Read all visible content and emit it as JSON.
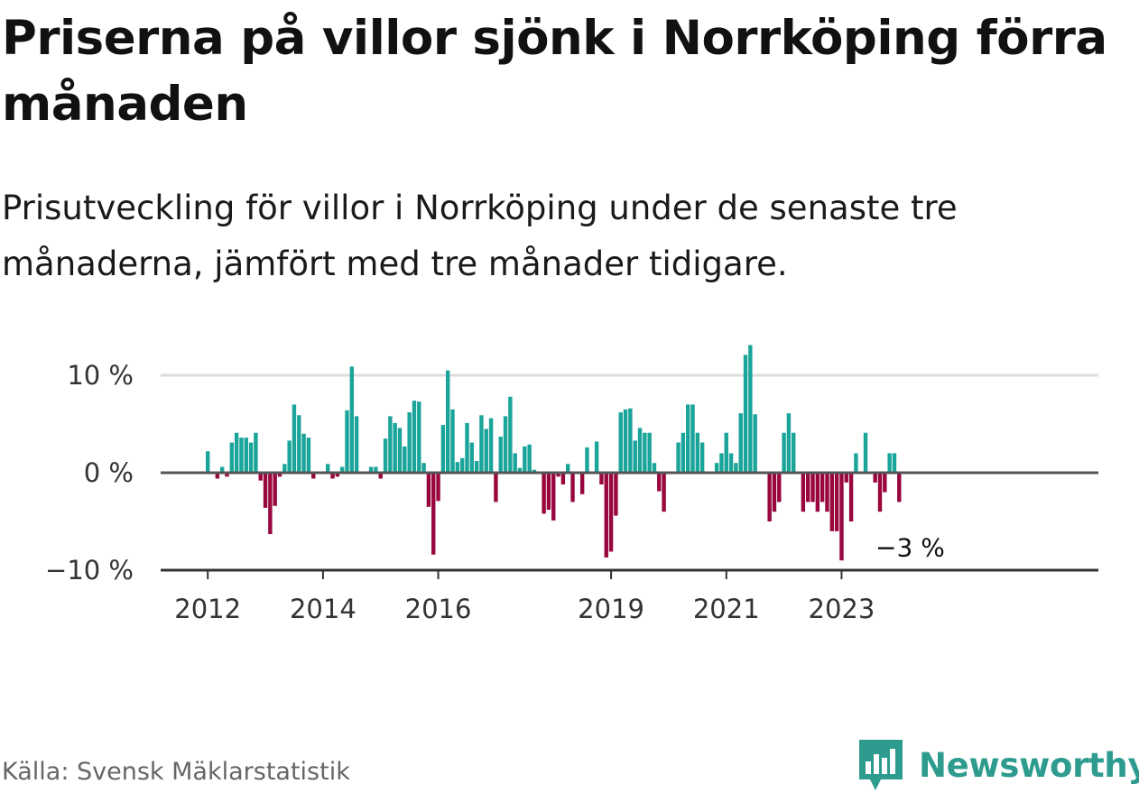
{
  "title": "Priserna på villor sjönk i Norrköping förra månaden",
  "subtitle": "Prisutveckling för villor i Norrköping under de senaste tre månaderna, jämfört med tre månader tidigare.",
  "source": "Källa: Svensk Mäklarstatistik",
  "brand": {
    "name": "Newsworthy",
    "logo_icon": "bar-chart-speech-bubble-icon",
    "color": "#2e9b8f"
  },
  "colors": {
    "positive": "#1aa49a",
    "negative": "#99063e",
    "zero_line": "#555555",
    "grid": "#dddddd"
  },
  "chart_data": {
    "type": "bar",
    "title": "Priserna på villor sjönk i Norrköping förra månaden",
    "xlabel": "",
    "ylabel": "",
    "unit": "%",
    "ylim": [
      -10.5,
      13
    ],
    "yticks": [
      10,
      0,
      -10
    ],
    "ytick_labels": [
      "10 %",
      "0 %",
      "−10 %"
    ],
    "xticks": [
      {
        "label": "2012",
        "index": 0
      },
      {
        "label": "2014",
        "index": 24
      },
      {
        "label": "2016",
        "index": 48
      },
      {
        "label": "2019",
        "index": 84
      },
      {
        "label": "2021",
        "index": 108
      },
      {
        "label": "2023",
        "index": 132
      }
    ],
    "start": "2011-12",
    "values": [
      2.2,
      0,
      -0.6,
      0.6,
      -0.4,
      3.1,
      4.1,
      3.6,
      3.6,
      3.1,
      4.1,
      -0.8,
      -3.6,
      -6.3,
      -3.4,
      -0.4,
      0.9,
      3.3,
      7.0,
      5.9,
      4.0,
      3.6,
      -0.6,
      0,
      0,
      0.9,
      -0.6,
      -0.4,
      0.6,
      6.4,
      10.9,
      5.8,
      0,
      0,
      0.6,
      0.6,
      -0.6,
      3.5,
      5.8,
      5.1,
      4.6,
      2.7,
      6.2,
      7.4,
      7.3,
      1.0,
      -3.5,
      -8.4,
      -2.9,
      4.9,
      10.5,
      6.5,
      1.1,
      1.5,
      5.1,
      3.1,
      1.2,
      5.9,
      4.5,
      5.6,
      -3.0,
      3.7,
      5.8,
      7.8,
      2.0,
      0.5,
      2.7,
      2.9,
      0.3,
      0,
      -4.2,
      -3.8,
      -4.9,
      -0.4,
      -1.2,
      0.9,
      -3.0,
      0,
      -2.2,
      2.6,
      0,
      3.2,
      -1.2,
      -8.7,
      -8.1,
      -4.4,
      6.2,
      6.5,
      6.6,
      3.3,
      4.6,
      4.1,
      4.1,
      1.0,
      -1.9,
      -4.0,
      0,
      0,
      3.1,
      4.1,
      7.0,
      7.0,
      4.1,
      3.1,
      0,
      0,
      1.0,
      2.0,
      4.1,
      2.0,
      1.0,
      6.1,
      12.1,
      13.1,
      6.0,
      0,
      0,
      -5.0,
      -4.0,
      -3.0,
      4.1,
      6.1,
      4.1,
      0,
      -4.0,
      -3.0,
      -3.0,
      -4.0,
      -3.0,
      -4.0,
      -6.0,
      -6.0,
      -9.0,
      -1.0,
      -5.0,
      2.0,
      0,
      4.1,
      0,
      -1.0,
      -4.0,
      -2.0,
      2.0,
      2.0,
      -3.0
    ],
    "annotations": [
      {
        "text": "−3 %",
        "index": 147,
        "value": -3.0
      }
    ]
  }
}
